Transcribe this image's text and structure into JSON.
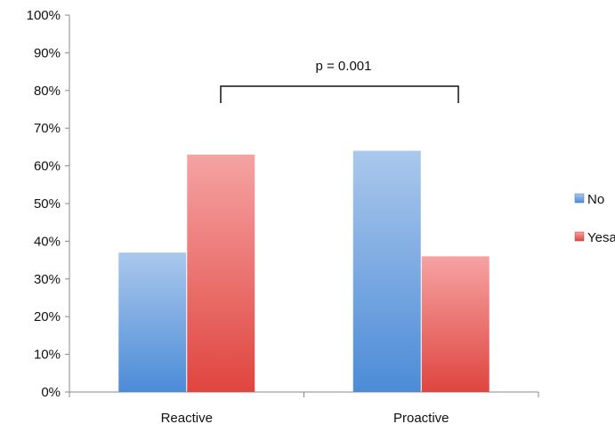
{
  "chart_data": {
    "type": "bar",
    "categories": [
      "Reactive",
      "Proactive"
    ],
    "series": [
      {
        "name": "No",
        "values": [
          37,
          64
        ],
        "color": "#5b8fd6"
      },
      {
        "name": "Yes",
        "values": [
          63,
          36
        ],
        "color": "#e2504c"
      }
    ],
    "ylim": [
      0,
      100
    ],
    "yticks": [
      "0%",
      "10%",
      "20%",
      "30%",
      "40%",
      "50%",
      "60%",
      "70%",
      "80%",
      "90%",
      "100%"
    ],
    "legend_position": "right",
    "legend_labels": [
      "No",
      "Yesa"
    ],
    "grid": false,
    "annotation": "p = 0.001"
  }
}
